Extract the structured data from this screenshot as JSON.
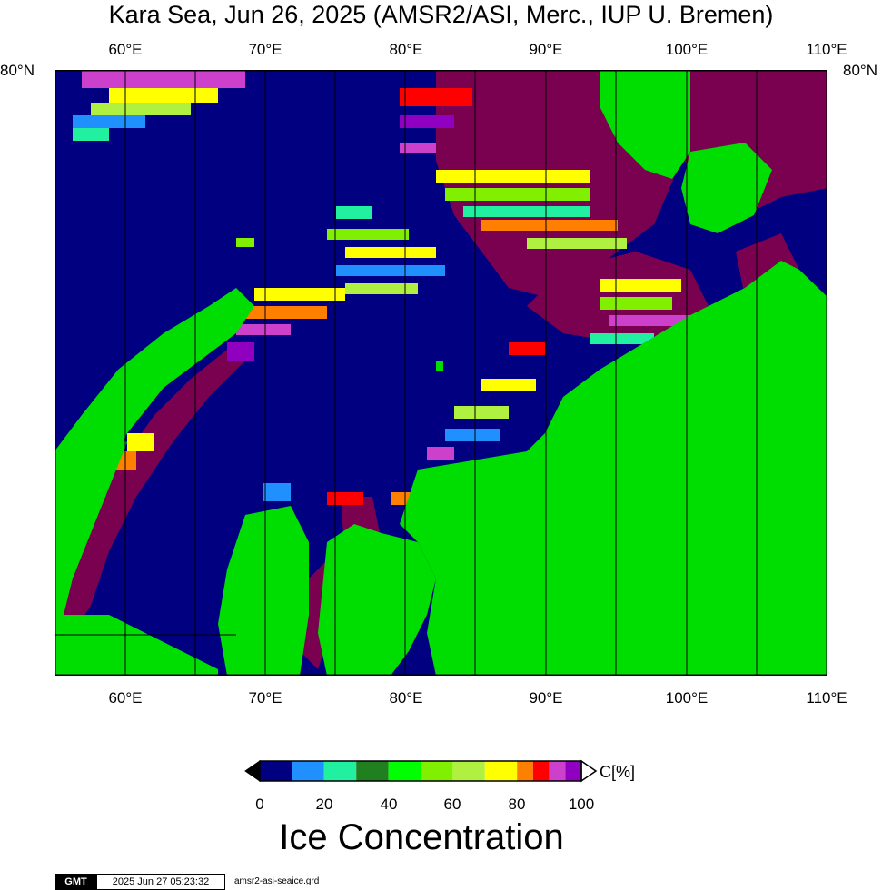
{
  "title": "Kara Sea, Jun 26, 2025 (AMSR2/ASI, Merc., IUP U. Bremen)",
  "map": {
    "lon_ticks": [
      "60°E",
      "70°E",
      "80°E",
      "90°E",
      "100°E",
      "110°E"
    ],
    "lat_label_left": "80°N",
    "lat_label_right": "80°N",
    "colors": {
      "ocean": "#000080",
      "land": "#00dd00",
      "high_ice": "#7a0050",
      "grid": "#000000"
    }
  },
  "colorbar": {
    "unit": "C[%]",
    "tick_labels": [
      "0",
      "20",
      "40",
      "60",
      "80",
      "100"
    ],
    "bins": [
      {
        "range": "0-10",
        "color": "#000080"
      },
      {
        "range": "10-20",
        "color": "#2090ff"
      },
      {
        "range": "20-30",
        "color": "#20f0a0"
      },
      {
        "range": "30-40",
        "color": "#208020"
      },
      {
        "range": "40-50",
        "color": "#00ff00"
      },
      {
        "range": "50-60",
        "color": "#80f000"
      },
      {
        "range": "60-70",
        "color": "#b0f040"
      },
      {
        "range": "70-80",
        "color": "#ffff00"
      },
      {
        "range": "80-85",
        "color": "#ff8000"
      },
      {
        "range": "85-90",
        "color": "#ff0000"
      },
      {
        "range": "90-95",
        "color": "#cc40cc"
      },
      {
        "range": "95-100",
        "color": "#9000c0"
      }
    ],
    "label": "Ice Concentration"
  },
  "footer": {
    "logo": "GMT",
    "timestamp": "2025 Jun 27 05:23:32",
    "file": "amsr2-asi-seaice.grd"
  }
}
